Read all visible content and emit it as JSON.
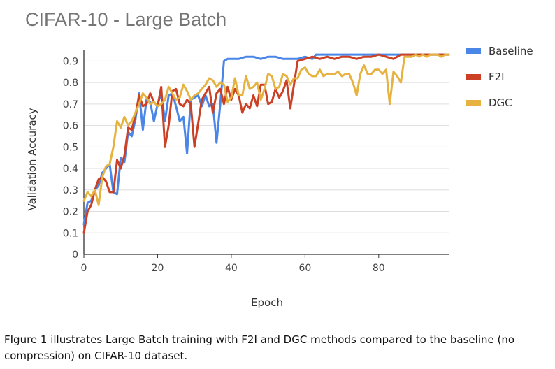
{
  "chart_data": {
    "type": "line",
    "title": "CIFAR-10 - Large Batch",
    "xlabel": "Epoch",
    "ylabel": "Validation Accuracy",
    "xlim": [
      0,
      99
    ],
    "ylim": [
      0,
      0.95
    ],
    "xticks": [
      "0",
      "20",
      "40",
      "60",
      "80"
    ],
    "yticks": [
      "0",
      "0.1",
      "0.2",
      "0.3",
      "0.4",
      "0.5",
      "0.6",
      "0.7",
      "0.8",
      "0.9"
    ],
    "grid": "horizontal",
    "legend_position": "right",
    "series": [
      {
        "name": "Baseline",
        "color": "#4a86e8",
        "x": [
          0,
          1,
          2,
          3,
          4,
          5,
          6,
          7,
          8,
          9,
          10,
          11,
          12,
          13,
          14,
          15,
          16,
          17,
          18,
          19,
          20,
          21,
          22,
          23,
          24,
          25,
          26,
          27,
          28,
          29,
          30,
          31,
          32,
          33,
          34,
          35,
          36,
          37,
          38,
          39,
          40,
          42,
          44,
          46,
          48,
          50,
          52,
          54,
          56,
          58,
          60,
          62,
          63,
          66,
          70,
          75,
          80,
          85,
          90,
          95,
          99
        ],
        "y": [
          0.14,
          0.24,
          0.25,
          0.3,
          0.32,
          0.38,
          0.4,
          0.42,
          0.29,
          0.28,
          0.45,
          0.43,
          0.57,
          0.55,
          0.63,
          0.75,
          0.58,
          0.72,
          0.71,
          0.62,
          0.7,
          0.75,
          0.62,
          0.74,
          0.75,
          0.69,
          0.62,
          0.64,
          0.47,
          0.72,
          0.73,
          0.74,
          0.69,
          0.74,
          0.69,
          0.7,
          0.52,
          0.7,
          0.9,
          0.91,
          0.91,
          0.91,
          0.92,
          0.92,
          0.91,
          0.92,
          0.92,
          0.91,
          0.91,
          0.91,
          0.92,
          0.91,
          0.93,
          0.93,
          0.93,
          0.93,
          0.93,
          0.93,
          0.93,
          0.93,
          0.93
        ]
      },
      {
        "name": "F2I",
        "color": "#cc4125",
        "x": [
          0,
          1,
          2,
          3,
          4,
          5,
          6,
          7,
          8,
          9,
          10,
          11,
          12,
          13,
          14,
          15,
          16,
          17,
          18,
          19,
          20,
          21,
          22,
          23,
          24,
          25,
          26,
          27,
          28,
          29,
          30,
          31,
          32,
          33,
          34,
          35,
          36,
          37,
          38,
          39,
          40,
          41,
          42,
          43,
          44,
          45,
          46,
          47,
          48,
          49,
          50,
          51,
          52,
          53,
          54,
          55,
          56,
          58,
          60,
          62,
          64,
          66,
          68,
          70,
          72,
          74,
          76,
          78,
          80,
          82,
          84,
          85,
          86,
          90,
          95,
          99
        ],
        "y": [
          0.1,
          0.2,
          0.23,
          0.3,
          0.35,
          0.36,
          0.34,
          0.29,
          0.29,
          0.44,
          0.4,
          0.46,
          0.59,
          0.58,
          0.65,
          0.74,
          0.69,
          0.7,
          0.75,
          0.71,
          0.69,
          0.78,
          0.5,
          0.6,
          0.76,
          0.77,
          0.7,
          0.69,
          0.72,
          0.7,
          0.5,
          0.61,
          0.72,
          0.75,
          0.78,
          0.66,
          0.75,
          0.77,
          0.7,
          0.78,
          0.72,
          0.77,
          0.74,
          0.66,
          0.7,
          0.68,
          0.74,
          0.69,
          0.79,
          0.79,
          0.7,
          0.71,
          0.77,
          0.73,
          0.76,
          0.81,
          0.68,
          0.9,
          0.91,
          0.92,
          0.91,
          0.92,
          0.91,
          0.92,
          0.92,
          0.91,
          0.92,
          0.92,
          0.93,
          0.92,
          0.91,
          0.92,
          0.93,
          0.93,
          0.93,
          0.93
        ]
      },
      {
        "name": "DGC",
        "color": "#e6b240",
        "x": [
          0,
          1,
          2,
          3,
          4,
          5,
          6,
          7,
          8,
          9,
          10,
          11,
          12,
          13,
          14,
          15,
          16,
          17,
          18,
          19,
          20,
          21,
          22,
          23,
          24,
          25,
          26,
          27,
          28,
          29,
          30,
          31,
          32,
          33,
          34,
          35,
          36,
          37,
          38,
          39,
          40,
          41,
          42,
          43,
          44,
          45,
          46,
          47,
          48,
          49,
          50,
          51,
          52,
          53,
          54,
          55,
          56,
          57,
          58,
          59,
          60,
          61,
          62,
          63,
          64,
          65,
          66,
          67,
          68,
          69,
          70,
          71,
          72,
          73,
          74,
          75,
          76,
          77,
          78,
          79,
          80,
          81,
          82,
          83,
          84,
          85,
          86,
          87,
          88,
          89,
          90,
          91,
          92,
          93,
          94,
          95,
          96,
          97,
          98,
          99
        ],
        "y": [
          0.25,
          0.29,
          0.27,
          0.3,
          0.23,
          0.36,
          0.41,
          0.42,
          0.5,
          0.62,
          0.59,
          0.64,
          0.6,
          0.62,
          0.66,
          0.7,
          0.75,
          0.73,
          0.7,
          0.71,
          0.69,
          0.7,
          0.72,
          0.78,
          0.75,
          0.72,
          0.73,
          0.79,
          0.76,
          0.72,
          0.74,
          0.75,
          0.77,
          0.79,
          0.82,
          0.81,
          0.78,
          0.8,
          0.79,
          0.71,
          0.73,
          0.82,
          0.74,
          0.74,
          0.83,
          0.77,
          0.78,
          0.8,
          0.72,
          0.77,
          0.84,
          0.83,
          0.77,
          0.78,
          0.84,
          0.83,
          0.79,
          0.82,
          0.82,
          0.86,
          0.87,
          0.84,
          0.83,
          0.83,
          0.86,
          0.83,
          0.84,
          0.84,
          0.84,
          0.85,
          0.83,
          0.84,
          0.84,
          0.8,
          0.74,
          0.84,
          0.88,
          0.84,
          0.84,
          0.86,
          0.86,
          0.84,
          0.86,
          0.7,
          0.85,
          0.83,
          0.8,
          0.92,
          0.92,
          0.92,
          0.93,
          0.92,
          0.93,
          0.92,
          0.93,
          0.93,
          0.93,
          0.92,
          0.93,
          0.93
        ]
      }
    ]
  },
  "caption": "FIgure 1 illustrates Large Batch training with F2I and DGC methods compared to the baseline (no compression) on CIFAR-10 dataset."
}
